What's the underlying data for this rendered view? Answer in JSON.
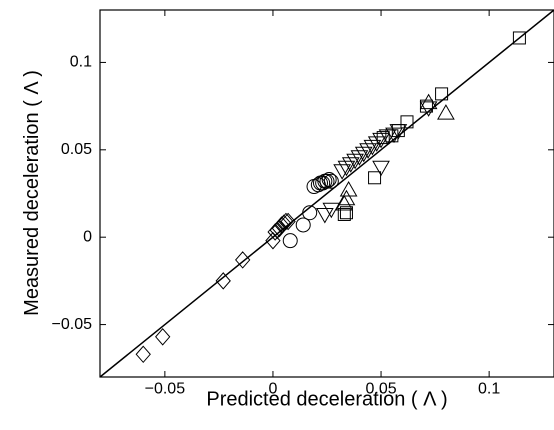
{
  "chart_data": {
    "type": "scatter",
    "title": "",
    "xlabel": "Predicted deceleration ( Λ )",
    "ylabel": "Measured deceleration ( Λ )",
    "xlim": [
      -0.08,
      0.13
    ],
    "ylim": [
      -0.08,
      0.13
    ],
    "xticks": [
      -0.05,
      0,
      0.05,
      0.1
    ],
    "xtick_labels": [
      "−0.05",
      "0",
      "0.05",
      "0.1"
    ],
    "yticks": [
      -0.05,
      0,
      0.05,
      0.1
    ],
    "ytick_labels": [
      "−0.05",
      "0",
      "0.05",
      "0.1"
    ],
    "grid": false,
    "legend": "none",
    "fit_line": {
      "x": [
        -0.08,
        0.13
      ],
      "y": [
        -0.08,
        0.13
      ]
    },
    "series": [
      {
        "marker": "diamond",
        "points": [
          [
            -0.06,
            -0.067
          ],
          [
            -0.051,
            -0.057
          ],
          [
            -0.023,
            -0.025
          ],
          [
            -0.014,
            -0.013
          ],
          [
            0.0,
            -0.002
          ],
          [
            0.001,
            0.003
          ],
          [
            0.002,
            0.004
          ],
          [
            0.003,
            0.005
          ],
          [
            0.004,
            0.007
          ],
          [
            0.005,
            0.008
          ],
          [
            0.006,
            0.009
          ],
          [
            0.007,
            0.009
          ]
        ]
      },
      {
        "marker": "circle",
        "points": [
          [
            0.008,
            -0.002
          ],
          [
            0.014,
            0.007
          ],
          [
            0.017,
            0.014
          ],
          [
            0.019,
            0.029
          ],
          [
            0.021,
            0.03
          ],
          [
            0.022,
            0.031
          ],
          [
            0.023,
            0.031
          ],
          [
            0.024,
            0.032
          ],
          [
            0.025,
            0.032
          ],
          [
            0.026,
            0.033
          ],
          [
            0.027,
            0.032
          ]
        ]
      },
      {
        "marker": "triangle-down",
        "points": [
          [
            0.024,
            0.013
          ],
          [
            0.027,
            0.016
          ],
          [
            0.032,
            0.038
          ],
          [
            0.034,
            0.04
          ],
          [
            0.036,
            0.042
          ],
          [
            0.038,
            0.044
          ],
          [
            0.04,
            0.046
          ],
          [
            0.042,
            0.048
          ],
          [
            0.044,
            0.05
          ],
          [
            0.046,
            0.052
          ],
          [
            0.048,
            0.054
          ],
          [
            0.05,
            0.056
          ],
          [
            0.053,
            0.058
          ],
          [
            0.056,
            0.059
          ],
          [
            0.058,
            0.061
          ],
          [
            0.05,
            0.04
          ],
          [
            0.072,
            0.074
          ]
        ]
      },
      {
        "marker": "triangle-up",
        "points": [
          [
            0.033,
            0.019
          ],
          [
            0.034,
            0.022
          ],
          [
            0.035,
            0.027
          ],
          [
            0.072,
            0.077
          ],
          [
            0.08,
            0.071
          ]
        ]
      },
      {
        "marker": "square",
        "points": [
          [
            0.033,
            0.013
          ],
          [
            0.034,
            0.014
          ],
          [
            0.047,
            0.034
          ],
          [
            0.051,
            0.057
          ],
          [
            0.055,
            0.058
          ],
          [
            0.058,
            0.061
          ],
          [
            0.062,
            0.066
          ],
          [
            0.071,
            0.075
          ],
          [
            0.078,
            0.082
          ],
          [
            0.114,
            0.114
          ]
        ]
      }
    ]
  }
}
